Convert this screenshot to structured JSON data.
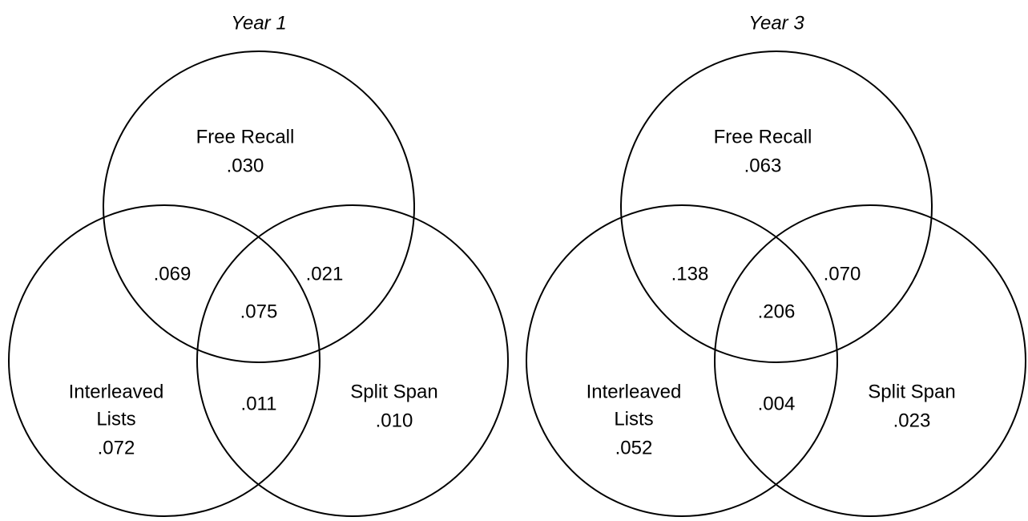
{
  "diagrams": [
    {
      "title": "Year 1",
      "sets": {
        "free_recall": {
          "label": [
            "Free Recall"
          ],
          "value": ".030"
        },
        "interleaved_lists": {
          "label": [
            "Interleaved",
            "Lists"
          ],
          "value": ".072"
        },
        "split_span": {
          "label": [
            "Split Span"
          ],
          "value": ".010"
        }
      },
      "overlaps": {
        "free_recall_interleaved": ".069",
        "free_recall_split": ".021",
        "all": ".075",
        "interleaved_split": ".011"
      }
    },
    {
      "title": "Year 3",
      "sets": {
        "free_recall": {
          "label": [
            "Free Recall"
          ],
          "value": ".063"
        },
        "interleaved_lists": {
          "label": [
            "Interleaved",
            "Lists"
          ],
          "value": ".052"
        },
        "split_span": {
          "label": [
            "Split Span"
          ],
          "value": ".023"
        }
      },
      "overlaps": {
        "free_recall_interleaved": ".138",
        "free_recall_split": ".070",
        "all": ".206",
        "interleaved_split": ".004"
      }
    }
  ]
}
